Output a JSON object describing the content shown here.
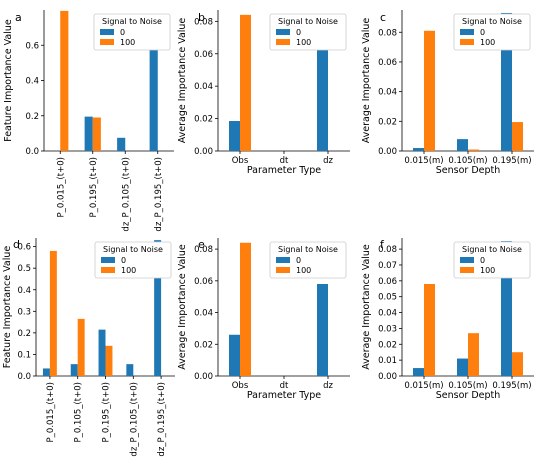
{
  "colors": {
    "s0": "#1f77b4",
    "s100": "#ff7f0e"
  },
  "chart_data": [
    {
      "id": "a",
      "letter": "a",
      "type": "bar",
      "categories": [
        "P_0.015_(t+0)",
        "P_0.195_(t+0)",
        "dz_P_0.105_(t+0)",
        "dz_P_0.195_(t+0)"
      ],
      "series": [
        {
          "name": "0",
          "values": [
            0.0,
            0.195,
            0.075,
            0.71
          ]
        },
        {
          "name": "100",
          "values": [
            0.795,
            0.19,
            0.0,
            0.0
          ]
        }
      ],
      "ylabel": "Feature Importance Value",
      "xlabel": "",
      "ylim": [
        0,
        0.8
      ],
      "yticks": [
        0.0,
        0.2,
        0.4,
        0.6
      ],
      "legend_title": "Signal to Noise",
      "legend_position": "top-right",
      "rotate_xticks": true
    },
    {
      "id": "b",
      "letter": "b",
      "type": "bar",
      "categories": [
        "Obs",
        "dt",
        "dz"
      ],
      "series": [
        {
          "name": "0",
          "values": [
            0.0185,
            0.0,
            0.065
          ]
        },
        {
          "name": "100",
          "values": [
            0.084,
            0.0,
            0.0
          ]
        }
      ],
      "ylabel": "Average Importance Value",
      "xlabel": "Parameter Type",
      "ylim": [
        0,
        0.087
      ],
      "yticks": [
        0.0,
        0.02,
        0.04,
        0.06,
        0.08
      ],
      "legend_title": "Signal to Noise",
      "legend_position": "top-right",
      "rotate_xticks": false
    },
    {
      "id": "c",
      "letter": "c",
      "type": "bar",
      "categories": [
        "0.015(m)",
        "0.105(m)",
        "0.195(m)"
      ],
      "series": [
        {
          "name": "0",
          "values": [
            0.002,
            0.008,
            0.093
          ]
        },
        {
          "name": "100",
          "values": [
            0.081,
            0.001,
            0.0195
          ]
        }
      ],
      "ylabel": "Average Importance Value",
      "xlabel": "Sensor Depth",
      "ylim": [
        0,
        0.095
      ],
      "yticks": [
        0.0,
        0.02,
        0.04,
        0.06,
        0.08
      ],
      "legend_title": "Signal to Noise",
      "legend_position": "top-right",
      "rotate_xticks": false
    },
    {
      "id": "d",
      "letter": "d",
      "type": "bar",
      "categories": [
        "P_0.015_(t+0)",
        "P_0.105_(t+0)",
        "P_0.195_(t+0)",
        "dz_P_0.105_(t+0)",
        "dz_P_0.195_(t+0)"
      ],
      "series": [
        {
          "name": "0",
          "values": [
            0.035,
            0.055,
            0.215,
            0.055,
            0.63
          ]
        },
        {
          "name": "100",
          "values": [
            0.58,
            0.265,
            0.14,
            0.0,
            0.0
          ]
        }
      ],
      "ylabel": "Feature Importance Value",
      "xlabel": "",
      "ylim": [
        0,
        0.64
      ],
      "yticks": [
        0.0,
        0.1,
        0.2,
        0.3,
        0.4,
        0.5,
        0.6
      ],
      "legend_title": "Signal to Noise",
      "legend_position": "top-right",
      "rotate_xticks": true
    },
    {
      "id": "e",
      "letter": "e",
      "type": "bar",
      "categories": [
        "Obs",
        "dt",
        "dz"
      ],
      "series": [
        {
          "name": "0",
          "values": [
            0.026,
            0.0,
            0.058
          ]
        },
        {
          "name": "100",
          "values": [
            0.084,
            0.0,
            0.0
          ]
        }
      ],
      "ylabel": "Average Importance Value",
      "xlabel": "Parameter Type",
      "ylim": [
        0,
        0.087
      ],
      "yticks": [
        0.0,
        0.02,
        0.04,
        0.06,
        0.08
      ],
      "legend_title": "Signal to Noise",
      "legend_position": "top-right",
      "rotate_xticks": false
    },
    {
      "id": "f",
      "letter": "f",
      "type": "bar",
      "categories": [
        "0.015(m)",
        "0.105(m)",
        "0.195(m)"
      ],
      "series": [
        {
          "name": "0",
          "values": [
            0.005,
            0.011,
            0.085
          ]
        },
        {
          "name": "100",
          "values": [
            0.058,
            0.027,
            0.015
          ]
        }
      ],
      "ylabel": "Average Importance Value",
      "xlabel": "Sensor Depth",
      "ylim": [
        0,
        0.087
      ],
      "yticks": [
        0.0,
        0.01,
        0.02,
        0.03,
        0.04,
        0.05,
        0.06,
        0.07,
        0.08
      ],
      "legend_title": "Signal to Noise",
      "legend_position": "top-right",
      "rotate_xticks": false
    }
  ]
}
